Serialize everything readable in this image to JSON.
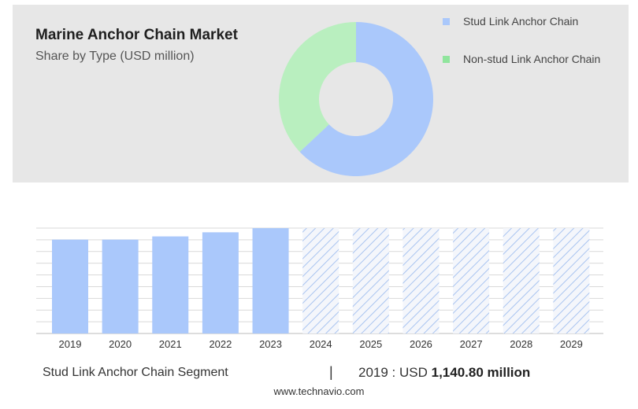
{
  "header": {
    "title": "Marine Anchor Chain Market",
    "subtitle": "Share by Type (USD million)"
  },
  "legend": [
    {
      "label": "Stud Link Anchor Chain",
      "color": "#aac8fb"
    },
    {
      "label": "Non-stud Link Anchor Chain",
      "color": "#90e59d"
    }
  ],
  "chart_data": [
    {
      "type": "pie",
      "donut": true,
      "slices": [
        {
          "label": "Stud Link Anchor Chain",
          "value": 63,
          "color": "#aac8fb"
        },
        {
          "label": "Non-stud Link Anchor Chain",
          "value": 37,
          "color": "#b9efbf"
        }
      ]
    },
    {
      "type": "bar",
      "categories": [
        "2019",
        "2020",
        "2021",
        "2022",
        "2023",
        "2024",
        "2025",
        "2026",
        "2027",
        "2028",
        "2029"
      ],
      "values": [
        1140.8,
        1140.8,
        1180,
        1230,
        1280,
        1280,
        1280,
        1280,
        1280,
        1280,
        1280
      ],
      "forecast_from": "2024",
      "ylim": [
        0,
        1300
      ],
      "grid": true,
      "bar_color": "#aac8fb",
      "forecast_pattern": "hatched"
    }
  ],
  "summary": {
    "segment_label": "Stud Link Anchor Chain Segment",
    "divider": "|",
    "year_text": "2019 : USD",
    "amount": "1,140.80 million"
  },
  "footer": {
    "url": "www.technavio.com"
  }
}
